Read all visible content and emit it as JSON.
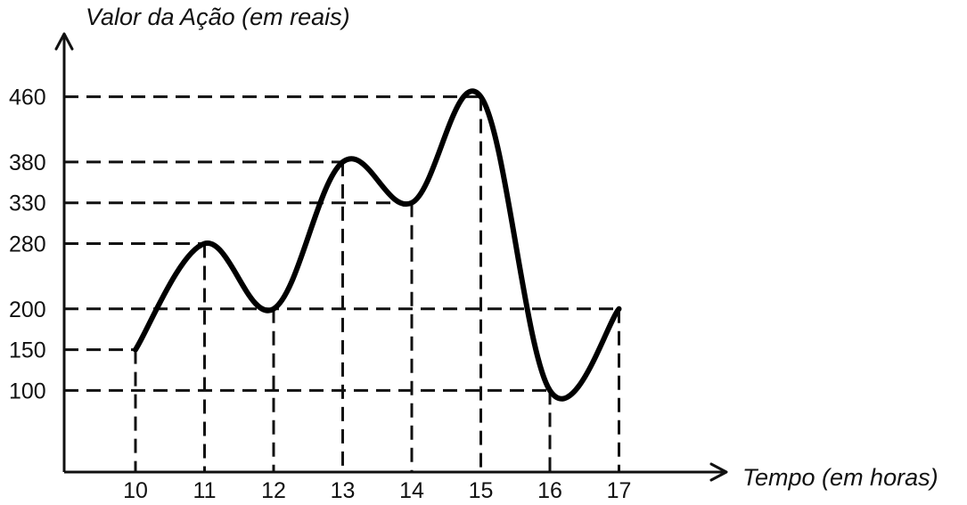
{
  "chart_data": {
    "type": "line",
    "ylabel": "Valor da Ação (em reais)",
    "xlabel": "Tempo (em horas)",
    "y_ticks": [
      "100",
      "150",
      "200",
      "280",
      "330",
      "380",
      "460"
    ],
    "x_ticks": [
      "10",
      "11",
      "12",
      "13",
      "14",
      "15",
      "16",
      "17"
    ],
    "x": [
      10,
      11,
      12,
      13,
      14,
      15,
      16,
      17
    ],
    "values": [
      150,
      280,
      200,
      380,
      330,
      460,
      100,
      200
    ],
    "xlim": [
      9,
      18
    ],
    "ylim": [
      0,
      480
    ],
    "grid": "dashed reference lines from each labeled point to the axes",
    "colors": {
      "line": "#000000",
      "axes": "#111111"
    }
  }
}
